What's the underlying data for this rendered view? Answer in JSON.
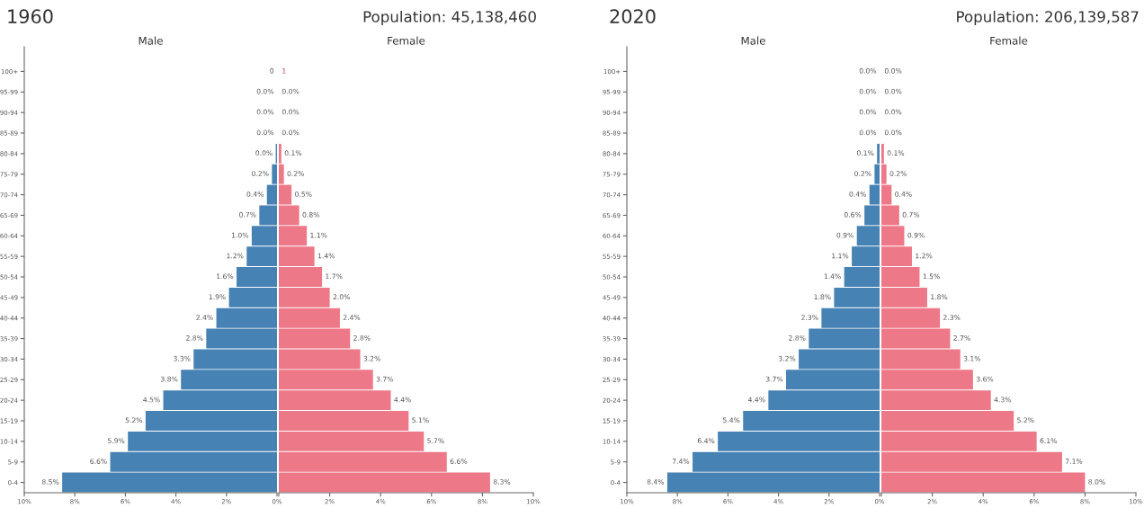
{
  "chart_data": [
    {
      "type": "bar",
      "orientation": "horizontal",
      "title": "1960",
      "subtitle": "Male",
      "categories": [
        "100+",
        "95-99",
        "90-94",
        "85-89",
        "80-84",
        "75-79",
        "70-74",
        "65-69",
        "60-64",
        "55-59",
        "50-54",
        "45-49",
        "40-44",
        "35-39",
        "30-34",
        "25-29",
        "20-24",
        "15-19",
        "10-14",
        "5-9",
        "0-4"
      ],
      "series": [
        {
          "color": "#4682b4",
          "values": [
            0,
            0.0,
            0.0,
            0.0,
            0.05,
            0.2,
            0.4,
            0.7,
            1.0,
            1.2,
            1.6,
            1.9,
            2.4,
            2.8,
            3.3,
            3.8,
            4.5,
            5.2,
            5.9,
            6.6,
            8.5
          ],
          "value_labels": [
            "0",
            "0.0%",
            "0.0%",
            "0.0%",
            "0.0%",
            "0.2%",
            "0.4%",
            "0.7%",
            "1.0%",
            "1.2%",
            "1.6%",
            "1.9%",
            "2.4%",
            "2.8%",
            "3.3%",
            "3.8%",
            "4.5%",
            "5.2%",
            "5.9%",
            "6.6%",
            "8.5%"
          ]
        }
      ],
      "xlim": [
        10,
        0
      ],
      "xticks": [
        {
          "value": 10,
          "label": "10%"
        },
        {
          "value": 8,
          "label": "8%"
        },
        {
          "value": 6,
          "label": "6%"
        },
        {
          "value": 4,
          "label": "4%"
        },
        {
          "value": 2,
          "label": "2%"
        },
        {
          "value": 0,
          "label": "0%"
        }
      ]
    },
    {
      "type": "bar",
      "orientation": "horizontal",
      "subtitle": "Female",
      "annotations": [
        "Population: 45,138,460",
        "1"
      ],
      "categories": [
        null,
        null,
        null,
        null,
        null,
        null,
        null,
        null,
        null,
        null,
        null,
        null,
        null,
        null,
        null,
        null,
        null,
        null,
        null,
        null,
        null
      ],
      "series": [
        {
          "color": "#ed7887",
          "values": [
            0,
            0.0,
            0.0,
            0.0,
            0.1,
            0.2,
            0.5,
            0.8,
            1.1,
            1.4,
            1.7,
            2.0,
            2.4,
            2.8,
            3.2,
            3.7,
            4.4,
            5.1,
            5.7,
            6.6,
            8.3
          ],
          "value_labels": [
            null,
            "0.0%",
            "0.0%",
            "0.0%",
            "0.1%",
            "0.2%",
            "0.5%",
            "0.8%",
            "1.1%",
            "1.4%",
            "1.7%",
            "2.0%",
            "2.4%",
            "2.8%",
            "3.2%",
            "3.7%",
            "4.4%",
            "5.1%",
            "5.7%",
            "6.6%",
            "8.3%"
          ]
        }
      ],
      "xlim": [
        0,
        10
      ],
      "xticks": [
        {
          "value": 0,
          "label": null
        },
        {
          "value": 2,
          "label": "2%"
        },
        {
          "value": 4,
          "label": "4%"
        },
        {
          "value": 6,
          "label": "6%"
        },
        {
          "value": 8,
          "label": "8%"
        },
        {
          "value": 10,
          "label": "10%"
        }
      ],
      "tick_labels": "x"
    },
    {
      "type": "bar",
      "orientation": "horizontal",
      "title": "2020",
      "subtitle": "Male",
      "categories": [
        "100+",
        "95-99",
        "90-94",
        "85-89",
        "80-84",
        "75-79",
        "70-74",
        "65-69",
        "60-64",
        "55-59",
        "50-54",
        "45-49",
        "40-44",
        "35-39",
        "30-34",
        "25-29",
        "20-24",
        "15-19",
        "10-14",
        "5-9",
        "0-4"
      ],
      "series": [
        {
          "color": "#4682b4",
          "values": [
            0.0,
            0.0,
            0.0,
            0.0,
            0.1,
            0.2,
            0.4,
            0.6,
            0.9,
            1.1,
            1.4,
            1.8,
            2.3,
            2.8,
            3.2,
            3.7,
            4.4,
            5.4,
            6.4,
            7.4,
            8.4
          ],
          "value_labels": [
            "0.0%",
            "0.0%",
            "0.0%",
            "0.0%",
            "0.1%",
            "0.2%",
            "0.4%",
            "0.6%",
            "0.9%",
            "1.1%",
            "1.4%",
            "1.8%",
            "2.3%",
            "2.8%",
            "3.2%",
            "3.7%",
            "4.4%",
            "5.4%",
            "6.4%",
            "7.4%",
            "8.4%"
          ]
        }
      ],
      "xlim": [
        10,
        0
      ],
      "xticks": [
        {
          "value": 10,
          "label": "10%"
        },
        {
          "value": 8,
          "label": "8%"
        },
        {
          "value": 6,
          "label": "6%"
        },
        {
          "value": 4,
          "label": "4%"
        },
        {
          "value": 2,
          "label": "2%"
        },
        {
          "value": 0,
          "label": "0%"
        }
      ]
    },
    {
      "type": "bar",
      "orientation": "horizontal",
      "subtitle": "Female",
      "annotations": [
        "Population: 206,139,587"
      ],
      "categories": [
        null,
        null,
        null,
        null,
        null,
        null,
        null,
        null,
        null,
        null,
        null,
        null,
        null,
        null,
        null,
        null,
        null,
        null,
        null,
        null,
        null
      ],
      "series": [
        {
          "color": "#ed7887",
          "values": [
            0.0,
            0.0,
            0.0,
            0.0,
            0.1,
            0.2,
            0.4,
            0.7,
            0.9,
            1.2,
            1.5,
            1.8,
            2.3,
            2.7,
            3.1,
            3.6,
            4.3,
            5.2,
            6.1,
            7.1,
            8.0
          ],
          "value_labels": [
            "0.0%",
            "0.0%",
            "0.0%",
            "0.0%",
            "0.1%",
            "0.2%",
            "0.4%",
            "0.7%",
            "0.9%",
            "1.2%",
            "1.5%",
            "1.8%",
            "2.3%",
            "2.7%",
            "3.1%",
            "3.6%",
            "4.3%",
            "5.2%",
            "6.1%",
            "7.1%",
            "8.0%"
          ]
        }
      ],
      "xlim": [
        0,
        10
      ],
      "xticks": [
        {
          "value": 0,
          "label": null
        },
        {
          "value": 2,
          "label": "2%"
        },
        {
          "value": 4,
          "label": "4%"
        },
        {
          "value": 6,
          "label": "6%"
        },
        {
          "value": 8,
          "label": "8%"
        },
        {
          "value": 10,
          "label": "10%"
        }
      ],
      "tick_labels": "x"
    }
  ]
}
